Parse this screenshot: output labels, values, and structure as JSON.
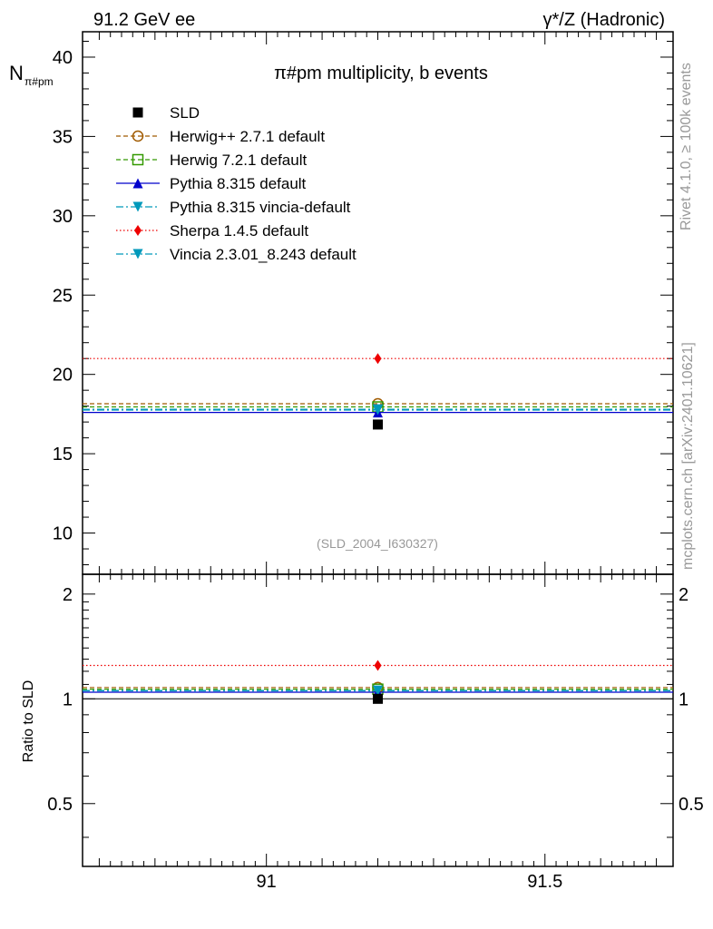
{
  "header": {
    "left": "91.2 GeV ee",
    "right": "γ*/Z (Hadronic)"
  },
  "side_text": {
    "rivet": "Rivet 4.1.0, ≥ 100k events",
    "mcplots": "mcplots.cern.ch [arXiv:2401.10621]"
  },
  "chart_data": {
    "type": "scatter",
    "title": "π#pm multiplicity, b events",
    "ylabel_main": "N",
    "ylabel_sub": "π#pm",
    "ylabel_ratio": "Ratio to SLD",
    "analysis_tag": "(SLD_2004_I630327)",
    "x_range": [
      90.67,
      91.73
    ],
    "x_ticks": [
      {
        "value": 91,
        "label": "91"
      },
      {
        "value": 91.5,
        "label": "91.5"
      }
    ],
    "main_ylim": [
      7.4,
      41.6
    ],
    "main_y_ticks": [
      {
        "value": 10,
        "label": "10"
      },
      {
        "value": 15,
        "label": "15"
      },
      {
        "value": 20,
        "label": "20"
      },
      {
        "value": 25,
        "label": "25"
      },
      {
        "value": 30,
        "label": "30"
      },
      {
        "value": 35,
        "label": "35"
      },
      {
        "value": 40,
        "label": "40"
      }
    ],
    "ratio_ylim": [
      0.33,
      2.28
    ],
    "ratio_y_ticks": [
      {
        "value": 0.5,
        "label": "0.5"
      },
      {
        "value": 1,
        "label": "1"
      },
      {
        "value": 2,
        "label": "2"
      }
    ],
    "point_x": 91.2,
    "data": {
      "name": "SLD",
      "value": 16.84,
      "ratio": 1.0,
      "color": "#000000"
    },
    "series": [
      {
        "name": "Herwig++ 2.7.1 default",
        "value": 18.15,
        "ratio": 1.078,
        "color": "#a05a00",
        "marker": "circle-open",
        "dash": "5,3"
      },
      {
        "name": "Herwig 7.2.1 default",
        "value": 17.95,
        "ratio": 1.066,
        "color": "#339900",
        "marker": "square-open",
        "dash": "5,3"
      },
      {
        "name": "Pythia 8.315 default",
        "value": 17.6,
        "ratio": 1.045,
        "color": "#0000cc",
        "marker": "triangle-up",
        "dash": ""
      },
      {
        "name": "Pythia 8.315 vincia-default",
        "value": 17.8,
        "ratio": 1.057,
        "color": "#0099bb",
        "marker": "triangle-down",
        "dash": "8,3,2,3"
      },
      {
        "name": "Sherpa 1.4.5 default",
        "value": 21.0,
        "ratio": 1.247,
        "color": "#ee0000",
        "marker": "diamond",
        "dash": "1.5,2.5"
      },
      {
        "name": "Vincia 2.3.01_8.243 default",
        "value": 17.75,
        "ratio": 1.054,
        "color": "#0099bb",
        "marker": "triangle-down",
        "dash": "8,3,2,3"
      }
    ]
  }
}
